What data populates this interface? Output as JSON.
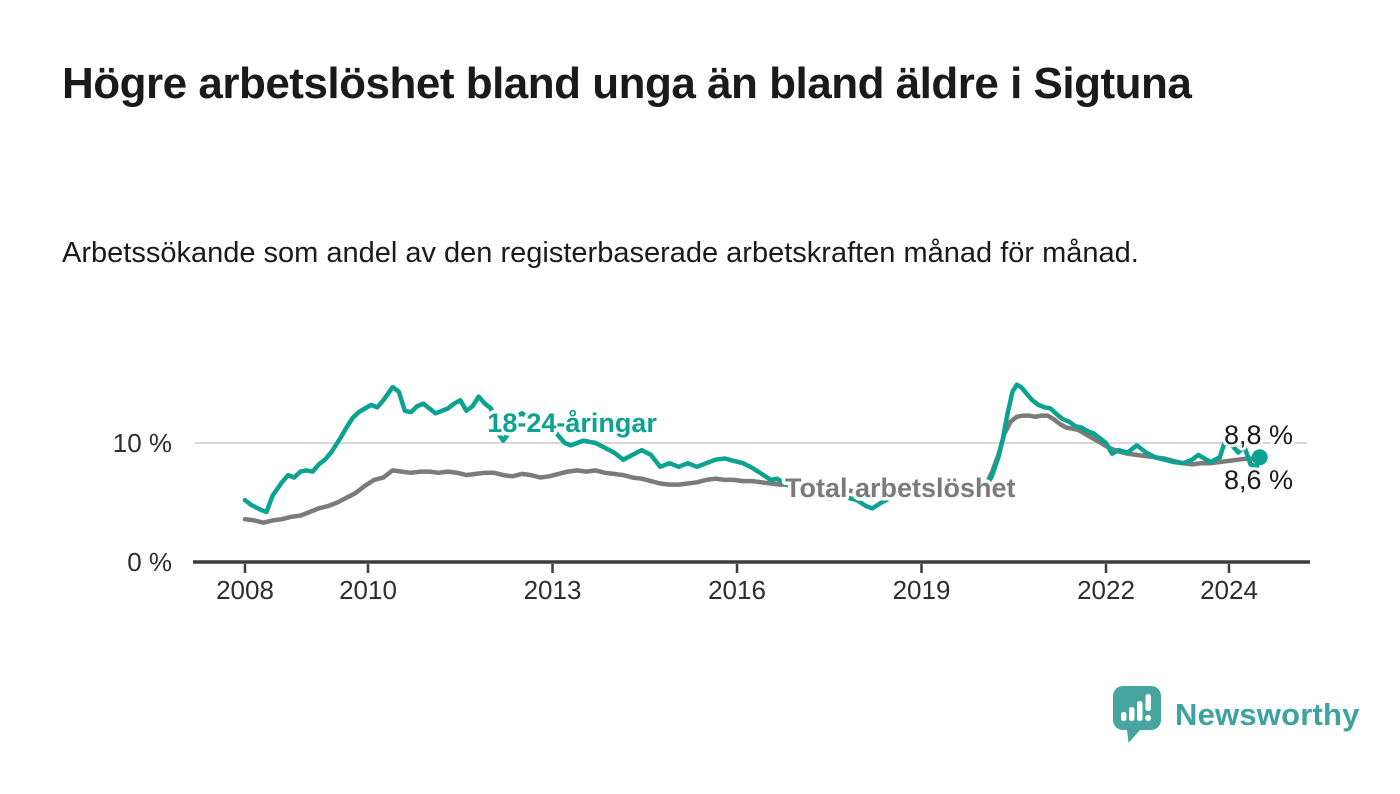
{
  "header": {
    "title": "Högre arbetslöshet bland unga än bland äldre i Sigtuna",
    "subtitle": "Arbetssökande som andel av den registerbaserade arbetskraften månad för månad."
  },
  "footer": {
    "brand": "Newsworthy"
  },
  "colors": {
    "accent_teal": "#0ca291",
    "series_gray": "#7b7b7b",
    "logo_teal": "#46a5a0",
    "text_dark": "#1a1a1a",
    "axis_text": "#2e2e2e",
    "gridline": "#d9d9d9",
    "axis_line": "#3c3c3c",
    "background": "#ffffff"
  },
  "chart_data": {
    "type": "line",
    "unit": "%",
    "grid": "horizontal-only",
    "legend_position": "inline-labels",
    "x_axis": {
      "ticks": [
        2008,
        2010,
        2013,
        2016,
        2019,
        2022,
        2024
      ],
      "range": [
        2007.2,
        2025.3
      ]
    },
    "y_axis": {
      "ticks": [
        {
          "value": 0,
          "label": "0 %"
        },
        {
          "value": 10,
          "label": "10 %"
        }
      ],
      "range": [
        0,
        16.5
      ],
      "gridlines": [
        10
      ]
    },
    "series": [
      {
        "name": "Total arbetslöshet",
        "color": "#7b7b7b",
        "label_anchor": {
          "year": 2016.78,
          "value": 5.46
        },
        "end_value_label": "8,6 %",
        "end_label_position": "below",
        "end_dot": false,
        "points": [
          [
            2008.0,
            3.6
          ],
          [
            2008.15,
            3.5
          ],
          [
            2008.3,
            3.3
          ],
          [
            2008.45,
            3.5
          ],
          [
            2008.6,
            3.6
          ],
          [
            2008.75,
            3.8
          ],
          [
            2008.9,
            3.9
          ],
          [
            2009.05,
            4.2
          ],
          [
            2009.2,
            4.5
          ],
          [
            2009.35,
            4.7
          ],
          [
            2009.5,
            5.0
          ],
          [
            2009.65,
            5.4
          ],
          [
            2009.8,
            5.8
          ],
          [
            2009.95,
            6.4
          ],
          [
            2010.1,
            6.9
          ],
          [
            2010.25,
            7.1
          ],
          [
            2010.4,
            7.7
          ],
          [
            2010.55,
            7.6
          ],
          [
            2010.7,
            7.5
          ],
          [
            2010.85,
            7.6
          ],
          [
            2011.0,
            7.6
          ],
          [
            2011.15,
            7.5
          ],
          [
            2011.3,
            7.6
          ],
          [
            2011.45,
            7.5
          ],
          [
            2011.6,
            7.3
          ],
          [
            2011.75,
            7.4
          ],
          [
            2011.9,
            7.5
          ],
          [
            2012.05,
            7.5
          ],
          [
            2012.2,
            7.3
          ],
          [
            2012.35,
            7.2
          ],
          [
            2012.5,
            7.4
          ],
          [
            2012.65,
            7.3
          ],
          [
            2012.8,
            7.1
          ],
          [
            2012.95,
            7.2
          ],
          [
            2013.1,
            7.4
          ],
          [
            2013.25,
            7.6
          ],
          [
            2013.4,
            7.7
          ],
          [
            2013.55,
            7.6
          ],
          [
            2013.7,
            7.7
          ],
          [
            2013.85,
            7.5
          ],
          [
            2014.0,
            7.4
          ],
          [
            2014.15,
            7.3
          ],
          [
            2014.3,
            7.1
          ],
          [
            2014.45,
            7.0
          ],
          [
            2014.6,
            6.8
          ],
          [
            2014.75,
            6.6
          ],
          [
            2014.9,
            6.5
          ],
          [
            2015.05,
            6.5
          ],
          [
            2015.2,
            6.6
          ],
          [
            2015.35,
            6.7
          ],
          [
            2015.5,
            6.9
          ],
          [
            2015.65,
            7.0
          ],
          [
            2015.8,
            6.9
          ],
          [
            2015.95,
            6.9
          ],
          [
            2016.1,
            6.8
          ],
          [
            2016.25,
            6.8
          ],
          [
            2016.4,
            6.7
          ],
          [
            2016.55,
            6.6
          ],
          [
            2016.7,
            6.5
          ],
          [
            2016.85,
            6.5
          ],
          [
            2017.0,
            6.4
          ],
          [
            2017.2,
            6.3
          ],
          [
            2017.4,
            6.2
          ],
          [
            2017.6,
            6.1
          ],
          [
            2017.8,
            6.0
          ],
          [
            2018.0,
            5.9
          ],
          [
            2018.2,
            5.9
          ],
          [
            2018.4,
            5.8
          ],
          [
            2018.6,
            5.8
          ],
          [
            2018.8,
            5.9
          ],
          [
            2019.0,
            6.0
          ],
          [
            2019.2,
            6.1
          ],
          [
            2019.4,
            6.2
          ],
          [
            2019.6,
            6.3
          ],
          [
            2019.8,
            6.5
          ],
          [
            2019.95,
            6.6
          ],
          [
            2020.05,
            6.5
          ],
          [
            2020.15,
            7.6
          ],
          [
            2020.25,
            9.0
          ],
          [
            2020.35,
            10.8
          ],
          [
            2020.45,
            11.8
          ],
          [
            2020.55,
            12.2
          ],
          [
            2020.65,
            12.3
          ],
          [
            2020.75,
            12.3
          ],
          [
            2020.85,
            12.2
          ],
          [
            2020.95,
            12.3
          ],
          [
            2021.05,
            12.3
          ],
          [
            2021.15,
            12.0
          ],
          [
            2021.25,
            11.6
          ],
          [
            2021.35,
            11.3
          ],
          [
            2021.45,
            11.2
          ],
          [
            2021.55,
            11.1
          ],
          [
            2021.65,
            10.8
          ],
          [
            2021.75,
            10.5
          ],
          [
            2021.85,
            10.2
          ],
          [
            2021.95,
            9.9
          ],
          [
            2022.05,
            9.6
          ],
          [
            2022.2,
            9.3
          ],
          [
            2022.35,
            9.1
          ],
          [
            2022.5,
            9.0
          ],
          [
            2022.65,
            8.9
          ],
          [
            2022.8,
            8.8
          ],
          [
            2022.95,
            8.7
          ],
          [
            2023.1,
            8.5
          ],
          [
            2023.25,
            8.3
          ],
          [
            2023.4,
            8.2
          ],
          [
            2023.55,
            8.3
          ],
          [
            2023.7,
            8.3
          ],
          [
            2023.85,
            8.4
          ],
          [
            2024.0,
            8.5
          ],
          [
            2024.15,
            8.6
          ],
          [
            2024.3,
            8.7
          ],
          [
            2024.4,
            8.7
          ],
          [
            2024.5,
            8.6
          ]
        ]
      },
      {
        "name": "18-24-åringar",
        "color": "#0ca291",
        "label_anchor": {
          "year": 2011.94,
          "value": 10.92
        },
        "end_value_label": "8,8 %",
        "end_label_position": "above",
        "end_dot": true,
        "points": [
          [
            2008.0,
            5.2
          ],
          [
            2008.1,
            4.8
          ],
          [
            2008.25,
            4.4
          ],
          [
            2008.35,
            4.2
          ],
          [
            2008.45,
            5.6
          ],
          [
            2008.6,
            6.7
          ],
          [
            2008.7,
            7.3
          ],
          [
            2008.8,
            7.1
          ],
          [
            2008.9,
            7.6
          ],
          [
            2009.0,
            7.7
          ],
          [
            2009.1,
            7.6
          ],
          [
            2009.2,
            8.2
          ],
          [
            2009.3,
            8.6
          ],
          [
            2009.4,
            9.2
          ],
          [
            2009.55,
            10.4
          ],
          [
            2009.65,
            11.3
          ],
          [
            2009.75,
            12.1
          ],
          [
            2009.85,
            12.6
          ],
          [
            2009.95,
            12.9
          ],
          [
            2010.05,
            13.2
          ],
          [
            2010.15,
            13.0
          ],
          [
            2010.25,
            13.6
          ],
          [
            2010.4,
            14.7
          ],
          [
            2010.5,
            14.3
          ],
          [
            2010.6,
            12.7
          ],
          [
            2010.7,
            12.6
          ],
          [
            2010.8,
            13.1
          ],
          [
            2010.9,
            13.3
          ],
          [
            2011.0,
            12.9
          ],
          [
            2011.1,
            12.5
          ],
          [
            2011.2,
            12.7
          ],
          [
            2011.3,
            12.9
          ],
          [
            2011.4,
            13.3
          ],
          [
            2011.5,
            13.6
          ],
          [
            2011.6,
            12.7
          ],
          [
            2011.7,
            13.1
          ],
          [
            2011.8,
            13.9
          ],
          [
            2011.9,
            13.3
          ],
          [
            2012.0,
            12.9
          ],
          [
            2012.1,
            10.9
          ],
          [
            2012.2,
            10.2
          ],
          [
            2012.3,
            10.9
          ],
          [
            2012.4,
            12.2
          ],
          [
            2012.5,
            12.5
          ],
          [
            2012.6,
            12.2
          ],
          [
            2012.7,
            11.8
          ],
          [
            2012.8,
            11.4
          ],
          [
            2012.9,
            11.6
          ],
          [
            2013.0,
            11.2
          ],
          [
            2013.1,
            10.6
          ],
          [
            2013.2,
            10.0
          ],
          [
            2013.3,
            9.8
          ],
          [
            2013.4,
            10.0
          ],
          [
            2013.5,
            10.2
          ],
          [
            2013.6,
            10.1
          ],
          [
            2013.7,
            10.0
          ],
          [
            2013.85,
            9.6
          ],
          [
            2014.0,
            9.2
          ],
          [
            2014.15,
            8.6
          ],
          [
            2014.3,
            9.0
          ],
          [
            2014.45,
            9.4
          ],
          [
            2014.6,
            9.0
          ],
          [
            2014.75,
            8.0
          ],
          [
            2014.9,
            8.3
          ],
          [
            2015.05,
            8.0
          ],
          [
            2015.2,
            8.3
          ],
          [
            2015.35,
            8.0
          ],
          [
            2015.5,
            8.3
          ],
          [
            2015.65,
            8.6
          ],
          [
            2015.8,
            8.7
          ],
          [
            2015.95,
            8.5
          ],
          [
            2016.1,
            8.3
          ],
          [
            2016.25,
            7.9
          ],
          [
            2016.4,
            7.4
          ],
          [
            2016.55,
            6.9
          ],
          [
            2016.65,
            7.0
          ],
          [
            2016.75,
            6.7
          ],
          [
            2016.9,
            6.2
          ],
          [
            2017.05,
            5.8
          ],
          [
            2017.2,
            5.9
          ],
          [
            2017.35,
            5.6
          ],
          [
            2017.5,
            5.3
          ],
          [
            2017.65,
            5.6
          ],
          [
            2017.8,
            5.4
          ],
          [
            2017.95,
            5.2
          ],
          [
            2018.1,
            4.7
          ],
          [
            2018.2,
            4.5
          ],
          [
            2018.35,
            5.0
          ],
          [
            2018.5,
            5.4
          ],
          [
            2018.65,
            5.7
          ],
          [
            2018.8,
            5.6
          ],
          [
            2018.95,
            5.8
          ],
          [
            2019.1,
            5.9
          ],
          [
            2019.25,
            5.8
          ],
          [
            2019.4,
            5.9
          ],
          [
            2019.55,
            5.8
          ],
          [
            2019.7,
            5.9
          ],
          [
            2019.85,
            6.0
          ],
          [
            2019.95,
            5.9
          ],
          [
            2020.05,
            6.2
          ],
          [
            2020.15,
            7.3
          ],
          [
            2020.25,
            8.8
          ],
          [
            2020.32,
            10.3
          ],
          [
            2020.4,
            12.5
          ],
          [
            2020.48,
            14.3
          ],
          [
            2020.55,
            14.9
          ],
          [
            2020.62,
            14.7
          ],
          [
            2020.7,
            14.2
          ],
          [
            2020.8,
            13.6
          ],
          [
            2020.9,
            13.2
          ],
          [
            2021.0,
            13.0
          ],
          [
            2021.1,
            12.9
          ],
          [
            2021.2,
            12.4
          ],
          [
            2021.3,
            12.0
          ],
          [
            2021.4,
            11.8
          ],
          [
            2021.5,
            11.4
          ],
          [
            2021.6,
            11.3
          ],
          [
            2021.7,
            11.0
          ],
          [
            2021.8,
            10.8
          ],
          [
            2021.9,
            10.4
          ],
          [
            2022.0,
            10.0
          ],
          [
            2022.1,
            9.1
          ],
          [
            2022.2,
            9.4
          ],
          [
            2022.35,
            9.2
          ],
          [
            2022.5,
            9.8
          ],
          [
            2022.65,
            9.2
          ],
          [
            2022.8,
            8.8
          ],
          [
            2022.95,
            8.6
          ],
          [
            2023.1,
            8.4
          ],
          [
            2023.25,
            8.3
          ],
          [
            2023.4,
            8.6
          ],
          [
            2023.5,
            9.0
          ],
          [
            2023.6,
            8.7
          ],
          [
            2023.7,
            8.4
          ],
          [
            2023.85,
            8.8
          ],
          [
            2023.95,
            10.4
          ],
          [
            2024.05,
            9.8
          ],
          [
            2024.15,
            9.2
          ],
          [
            2024.25,
            9.7
          ],
          [
            2024.35,
            8.2
          ],
          [
            2024.45,
            8.0
          ],
          [
            2024.5,
            8.8
          ]
        ]
      }
    ]
  }
}
